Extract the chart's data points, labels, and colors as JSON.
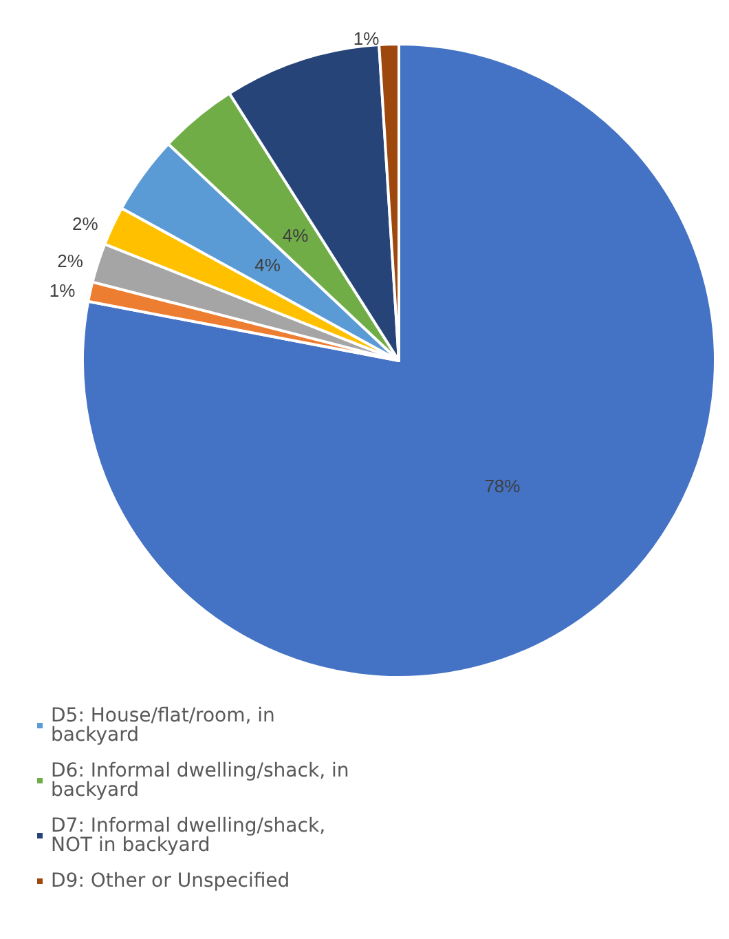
{
  "chart_data": {
    "type": "pie",
    "categories": [
      null,
      null,
      null,
      null,
      "D5: House/flat/room, in backyard",
      "D6: Informal dwelling/shack, in backyard",
      "D7: Informal dwelling/shack, NOT in backyard",
      "D9: Other or Unspecified"
    ],
    "values": [
      78,
      1,
      2,
      2,
      4,
      4,
      8,
      1
    ],
    "value_labels": [
      "78%",
      "1%",
      "2%",
      "2%",
      "4%",
      "4%",
      null,
      "1%"
    ],
    "colors": [
      "#4472c4",
      "#ed7d31",
      "#a5a5a5",
      "#ffc000",
      "#5b9bd5",
      "#70ad47",
      "#264478",
      "#9e480e"
    ],
    "legend": "bottom left"
  }
}
